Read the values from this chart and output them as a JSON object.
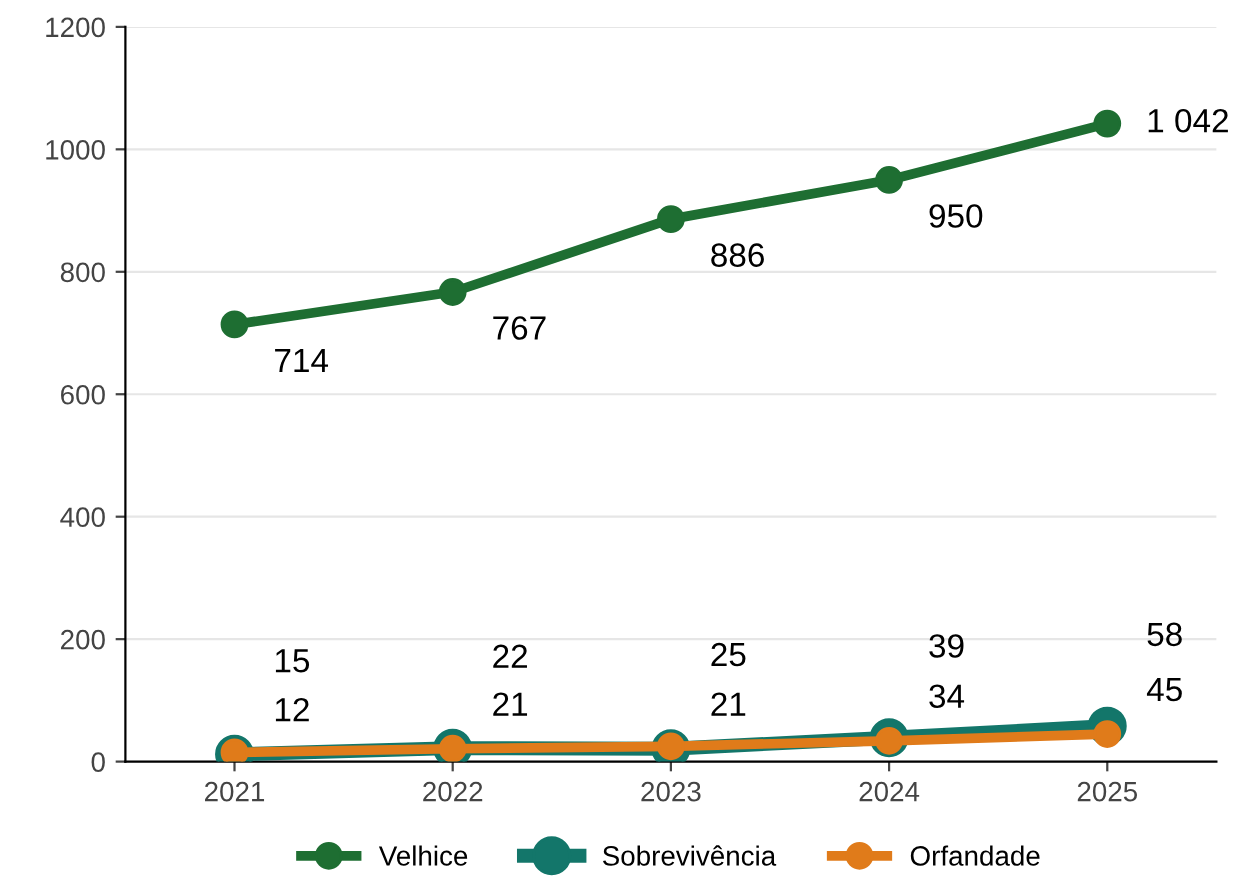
{
  "chart_data": {
    "type": "line",
    "x": [
      2021,
      2022,
      2023,
      2024,
      2025
    ],
    "xlim": [
      2020.5,
      2025.5
    ],
    "xticks": [
      2021,
      2022,
      2023,
      2024,
      2025
    ],
    "ylim": [
      0,
      1200
    ],
    "yticks": [
      0,
      200,
      400,
      600,
      800,
      1000,
      1200
    ],
    "grid": "y",
    "legend": "bottom",
    "marker": "circle",
    "line_style": "solid",
    "series": [
      {
        "name": "Velhice",
        "color": "#1e6e32",
        "values": [
          714,
          767,
          886,
          950,
          1042
        ],
        "value_labels": [
          "714",
          "767",
          "886",
          "950",
          "1 042"
        ]
      },
      {
        "name": "Sobrevivência",
        "color": "#13766a",
        "values": [
          12,
          22,
          21,
          39,
          58
        ],
        "value_labels": [
          "12",
          "22",
          "21",
          "39",
          "58"
        ]
      },
      {
        "name": "Orfandade",
        "color": "#e07b1a",
        "values": [
          15,
          21,
          25,
          34,
          45
        ],
        "value_labels": [
          "15",
          "21",
          "25",
          "34",
          "45"
        ]
      }
    ]
  }
}
